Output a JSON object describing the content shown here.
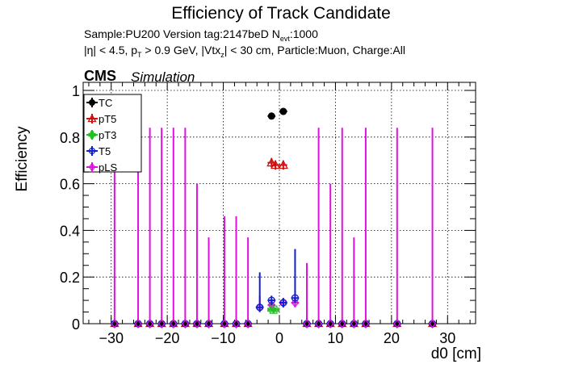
{
  "title": "Efficiency of Track Candidate",
  "info": {
    "sample_prefix": "Sample:PU200   Version tag:2147beD  N",
    "sample_sub": "evt",
    "sample_suffix": ":1000",
    "cuts_a": "|η| < 4.5, p",
    "cuts_sub_t": "T",
    "cuts_b": " > 0.9 GeV, |Vtx",
    "cuts_sub_z": "z",
    "cuts_c": "| < 30 cm, Particle:Muon, Charge:All"
  },
  "experiment": {
    "name": "CMS",
    "status": "Simulation"
  },
  "chart_data": {
    "type": "scatter",
    "xlabel": "d0 [cm]",
    "ylabel": "Efficiency",
    "xlim": [
      -35,
      35
    ],
    "ylim": [
      0,
      1.02
    ],
    "xticks": [
      -30,
      -20,
      -10,
      0,
      10,
      20,
      30
    ],
    "xtick_labels": [
      "−30",
      "−20",
      "−10",
      "0",
      "10",
      "20",
      "30"
    ],
    "yticks": [
      0,
      0.2,
      0.4,
      0.6,
      0.8,
      1
    ],
    "ytick_labels": [
      "0",
      "0.2",
      "0.4",
      "0.6",
      "0.8",
      "1"
    ],
    "grid": true,
    "legend_position": "top-left",
    "x_bin_halfwidth": 0.7,
    "series": [
      {
        "name": "TC",
        "color": "#000000",
        "marker": "filled-circle",
        "points": [
          {
            "x": -1.4,
            "y": 0.89,
            "yerr": [
              0.01,
              0.01
            ]
          },
          {
            "x": 0.7,
            "y": 0.91,
            "yerr": [
              0.01,
              0.01
            ]
          }
        ]
      },
      {
        "name": "pT5",
        "color": "#d01010",
        "marker": "open-triangle",
        "points": [
          {
            "x": -1.4,
            "y": 0.69,
            "yerr": [
              0.02,
              0.02
            ]
          },
          {
            "x": -0.7,
            "y": 0.68,
            "yerr": [
              0.02,
              0.02
            ]
          },
          {
            "x": 0.7,
            "y": 0.68,
            "yerr": [
              0.02,
              0.02
            ]
          }
        ]
      },
      {
        "name": "pT3",
        "color": "#20c020",
        "marker": "open-cross",
        "points": [
          {
            "x": -1.4,
            "y": 0.06,
            "yerr": [
              0.01,
              0.01
            ]
          },
          {
            "x": -0.7,
            "y": 0.06,
            "yerr": [
              0.01,
              0.01
            ]
          }
        ]
      },
      {
        "name": "T5",
        "color": "#1020d0",
        "marker": "open-circle",
        "points": [
          {
            "x": -3.5,
            "y": 0.07,
            "yerr": [
              0.02,
              0.15
            ]
          },
          {
            "x": -1.4,
            "y": 0.1,
            "yerr": [
              0.02,
              0.02
            ]
          },
          {
            "x": 0.7,
            "y": 0.09,
            "yerr": [
              0.02,
              0.02
            ]
          },
          {
            "x": 2.8,
            "y": 0.11,
            "yerr": [
              0.02,
              0.21
            ]
          }
        ]
      },
      {
        "name": "pLS",
        "color": "#e010e0",
        "marker": "open-diamond",
        "points": [
          {
            "x": -29.4,
            "y": 0.0,
            "yerr": [
              0,
              0.84
            ]
          },
          {
            "x": -25.2,
            "y": 0.0,
            "yerr": [
              0,
              0.84
            ]
          },
          {
            "x": -23.1,
            "y": 0.0,
            "yerr": [
              0,
              0.84
            ]
          },
          {
            "x": -21.0,
            "y": 0.0,
            "yerr": [
              0,
              0.84
            ]
          },
          {
            "x": -18.9,
            "y": 0.0,
            "yerr": [
              0,
              0.84
            ]
          },
          {
            "x": -16.8,
            "y": 0.0,
            "yerr": [
              0,
              0.84
            ]
          },
          {
            "x": -14.7,
            "y": 0.0,
            "yerr": [
              0,
              0.6
            ]
          },
          {
            "x": -12.6,
            "y": 0.0,
            "yerr": [
              0,
              0.37
            ]
          },
          {
            "x": -9.8,
            "y": 0.0,
            "yerr": [
              0,
              0.46
            ]
          },
          {
            "x": -7.7,
            "y": 0.0,
            "yerr": [
              0,
              0.46
            ]
          },
          {
            "x": -5.6,
            "y": 0.0,
            "yerr": [
              0,
              0.37
            ]
          },
          {
            "x": -3.5,
            "y": 0.07,
            "yerr": [
              0.02,
              0.05
            ]
          },
          {
            "x": -1.4,
            "y": 0.08,
            "yerr": [
              0.02,
              0.02
            ]
          },
          {
            "x": 0.7,
            "y": 0.09,
            "yerr": [
              0.02,
              0.02
            ]
          },
          {
            "x": 2.8,
            "y": 0.09,
            "yerr": [
              0.02,
              0.05
            ]
          },
          {
            "x": 4.9,
            "y": 0.0,
            "yerr": [
              0,
              0.26
            ]
          },
          {
            "x": 7.0,
            "y": 0.0,
            "yerr": [
              0,
              0.84
            ]
          },
          {
            "x": 9.1,
            "y": 0.0,
            "yerr": [
              0,
              0.6
            ]
          },
          {
            "x": 11.2,
            "y": 0.0,
            "yerr": [
              0,
              0.84
            ]
          },
          {
            "x": 13.3,
            "y": 0.0,
            "yerr": [
              0,
              0.37
            ]
          },
          {
            "x": 15.4,
            "y": 0.0,
            "yerr": [
              0,
              0.84
            ]
          },
          {
            "x": 21.0,
            "y": 0.0,
            "yerr": [
              0,
              0.84
            ]
          },
          {
            "x": 27.3,
            "y": 0.0,
            "yerr": [
              0,
              0.84
            ]
          }
        ]
      }
    ],
    "zero_bins_x": [
      -29.4,
      -25.2,
      -23.1,
      -21.0,
      -18.9,
      -16.8,
      -14.7,
      -12.6,
      -9.8,
      -7.7,
      -5.6,
      4.9,
      7.0,
      9.1,
      11.2,
      13.3,
      15.4,
      21.0,
      27.3
    ]
  }
}
